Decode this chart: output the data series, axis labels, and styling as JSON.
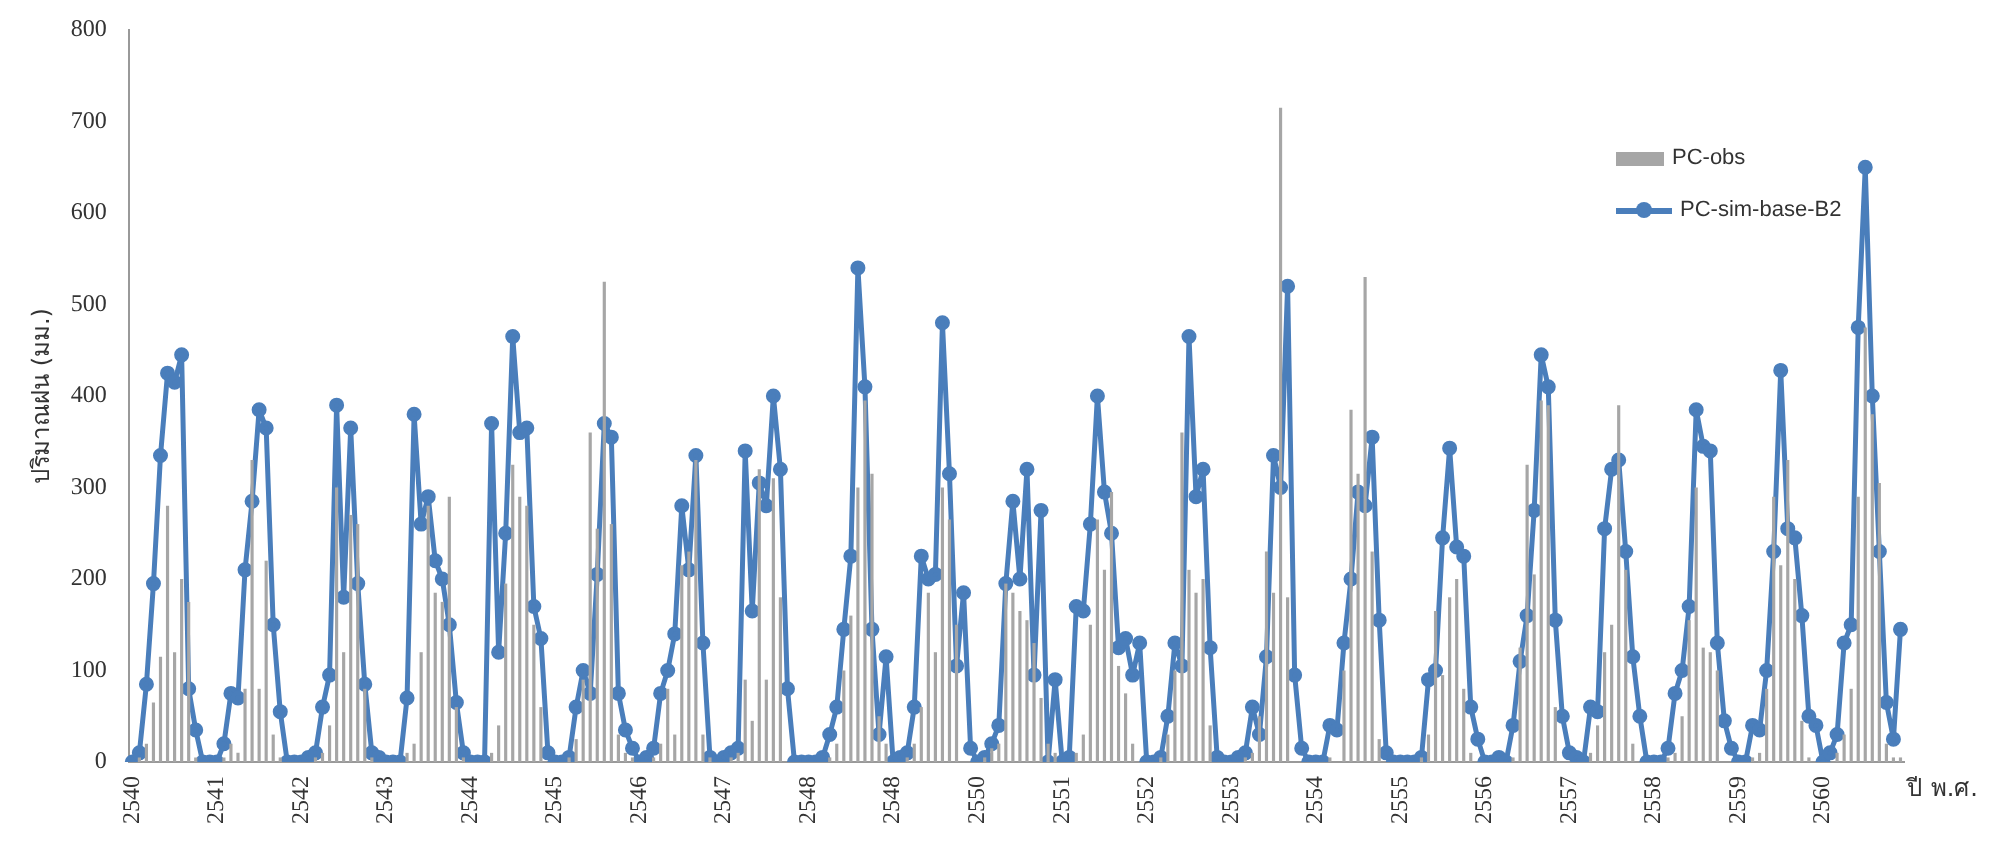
{
  "chart_data": {
    "type": "bar",
    "ylabel": "ปริมาณฝน (มม.)",
    "xlabel": "ปี พ.ศ.",
    "categories": [
      "2540",
      null,
      null,
      null,
      null,
      null,
      null,
      null,
      null,
      null,
      null,
      null,
      "2541",
      null,
      null,
      null,
      null,
      null,
      null,
      null,
      null,
      null,
      null,
      null,
      "2542",
      null,
      null,
      null,
      null,
      null,
      null,
      null,
      null,
      null,
      null,
      null,
      "2543",
      null,
      null,
      null,
      null,
      null,
      null,
      null,
      null,
      null,
      null,
      null,
      "2544",
      null,
      null,
      null,
      null,
      null,
      null,
      null,
      null,
      null,
      null,
      null,
      "2545",
      null,
      null,
      null,
      null,
      null,
      null,
      null,
      null,
      null,
      null,
      null,
      "2546",
      null,
      null,
      null,
      null,
      null,
      null,
      null,
      null,
      null,
      null,
      null,
      "2547",
      null,
      null,
      null,
      null,
      null,
      null,
      null,
      null,
      null,
      null,
      null,
      "2548",
      null,
      null,
      null,
      null,
      null,
      null,
      null,
      null,
      null,
      null,
      null,
      "2548",
      null,
      null,
      null,
      null,
      null,
      null,
      null,
      null,
      null,
      null,
      null,
      "2550",
      null,
      null,
      null,
      null,
      null,
      null,
      null,
      null,
      null,
      null,
      null,
      "2551",
      null,
      null,
      null,
      null,
      null,
      null,
      null,
      null,
      null,
      null,
      null,
      "2552",
      null,
      null,
      null,
      null,
      null,
      null,
      null,
      null,
      null,
      null,
      null,
      "2553",
      null,
      null,
      null,
      null,
      null,
      null,
      null,
      null,
      null,
      null,
      null,
      "2554",
      null,
      null,
      null,
      null,
      null,
      null,
      null,
      null,
      null,
      null,
      null,
      "2555",
      null,
      null,
      null,
      null,
      null,
      null,
      null,
      null,
      null,
      null,
      null,
      "2556",
      null,
      null,
      null,
      null,
      null,
      null,
      null,
      null,
      null,
      null,
      null,
      "2557",
      null,
      null,
      null,
      null,
      null,
      null,
      null,
      null,
      null,
      null,
      null,
      "2558",
      null,
      null,
      null,
      null,
      null,
      null,
      null,
      null,
      null,
      null,
      null,
      "2559",
      null,
      null,
      null,
      null,
      null,
      null,
      null,
      null,
      null,
      null,
      null,
      "2560",
      null,
      null,
      null,
      null,
      null,
      null,
      null,
      null,
      null,
      null,
      null
    ],
    "ylim": [
      0,
      800
    ],
    "yticks": [
      0,
      100,
      200,
      300,
      400,
      500,
      600,
      700,
      800
    ],
    "grid": false,
    "legend": "top right",
    "marker": "circle",
    "series": [
      {
        "name": "PC-obs",
        "color": "#a6a6a6",
        "values": [
          0,
          5,
          20,
          65,
          115,
          280,
          120,
          200,
          175,
          5,
          0,
          0,
          0,
          5,
          20,
          10,
          80,
          330,
          80,
          220,
          30,
          5,
          0,
          0,
          0,
          0,
          5,
          10,
          40,
          300,
          120,
          270,
          260,
          80,
          5,
          0,
          0,
          0,
          0,
          10,
          20,
          120,
          280,
          185,
          175,
          290,
          60,
          5,
          0,
          0,
          0,
          10,
          40,
          195,
          325,
          290,
          280,
          150,
          60,
          0,
          0,
          0,
          5,
          25,
          90,
          360,
          255,
          525,
          260,
          30,
          10,
          5,
          0,
          0,
          5,
          20,
          80,
          30,
          215,
          230,
          330,
          30,
          5,
          0,
          0,
          5,
          10,
          90,
          45,
          320,
          90,
          310,
          180,
          0,
          0,
          0,
          0,
          0,
          0,
          5,
          20,
          100,
          160,
          300,
          395,
          315,
          50,
          20,
          0,
          0,
          5,
          20,
          60,
          185,
          120,
          300,
          265,
          150,
          0,
          0,
          0,
          5,
          15,
          20,
          195,
          185,
          165,
          155,
          130,
          70,
          20,
          10,
          0,
          0,
          10,
          30,
          150,
          265,
          210,
          295,
          105,
          75,
          20,
          0,
          0,
          0,
          5,
          30,
          100,
          360,
          210,
          185,
          200,
          40,
          0,
          0,
          0,
          0,
          5,
          10,
          50,
          230,
          185,
          715,
          180,
          0,
          0,
          0,
          0,
          0,
          5,
          0,
          100,
          385,
          315,
          530,
          230,
          25,
          0,
          0,
          0,
          0,
          0,
          5,
          30,
          165,
          95,
          180,
          200,
          80,
          10,
          0,
          0,
          0,
          0,
          0,
          5,
          125,
          325,
          205,
          395,
          390,
          60,
          0,
          0,
          0,
          0,
          10,
          40,
          120,
          150,
          390,
          210,
          20,
          0,
          0,
          0,
          0,
          5,
          10,
          50,
          155,
          300,
          125,
          120,
          100,
          0,
          0,
          0,
          0,
          5,
          10,
          80,
          290,
          215,
          330,
          200,
          45,
          5,
          0,
          0,
          0,
          10,
          30,
          80,
          290,
          475,
          380,
          305,
          20,
          5,
          5
        ]
      },
      {
        "name": "PC-sim-base-B2",
        "type": "line",
        "color": "#4a7ebb",
        "values": [
          0,
          10,
          85,
          195,
          335,
          425,
          415,
          445,
          80,
          35,
          0,
          0,
          0,
          20,
          75,
          70,
          210,
          285,
          385,
          365,
          150,
          55,
          0,
          0,
          0,
          5,
          10,
          60,
          95,
          390,
          180,
          365,
          195,
          85,
          10,
          5,
          0,
          0,
          0,
          70,
          380,
          260,
          290,
          220,
          200,
          150,
          65,
          10,
          0,
          0,
          0,
          370,
          120,
          250,
          465,
          360,
          365,
          170,
          135,
          10,
          0,
          0,
          5,
          60,
          100,
          75,
          205,
          370,
          355,
          75,
          35,
          15,
          0,
          5,
          15,
          75,
          100,
          140,
          280,
          210,
          335,
          130,
          5,
          0,
          5,
          10,
          15,
          340,
          165,
          305,
          280,
          400,
          320,
          80,
          0,
          0,
          0,
          0,
          5,
          30,
          60,
          145,
          225,
          540,
          410,
          145,
          30,
          115,
          0,
          5,
          10,
          60,
          225,
          200,
          205,
          480,
          315,
          105,
          185,
          15,
          0,
          5,
          20,
          40,
          195,
          285,
          200,
          320,
          95,
          275,
          0,
          90,
          0,
          5,
          170,
          165,
          260,
          400,
          295,
          250,
          125,
          135,
          95,
          130,
          0,
          0,
          5,
          50,
          130,
          105,
          465,
          290,
          320,
          125,
          5,
          0,
          0,
          5,
          10,
          60,
          30,
          115,
          335,
          300,
          520,
          95,
          15,
          0,
          0,
          0,
          40,
          35,
          130,
          200,
          295,
          280,
          355,
          155,
          10,
          0,
          0,
          0,
          0,
          5,
          90,
          100,
          245,
          343,
          235,
          225,
          60,
          25,
          0,
          0,
          5,
          0,
          40,
          110,
          160,
          275,
          445,
          410,
          155,
          50,
          10,
          5,
          0,
          60,
          55,
          255,
          320,
          330,
          230,
          115,
          50,
          0,
          0,
          0,
          15,
          75,
          100,
          170,
          385,
          345,
          340,
          130,
          45,
          15,
          0,
          0,
          40,
          35,
          100,
          230,
          428,
          255,
          245,
          160,
          50,
          40,
          0,
          10,
          30,
          130,
          150,
          475,
          650,
          400,
          230,
          65,
          25,
          145
        ]
      }
    ]
  }
}
